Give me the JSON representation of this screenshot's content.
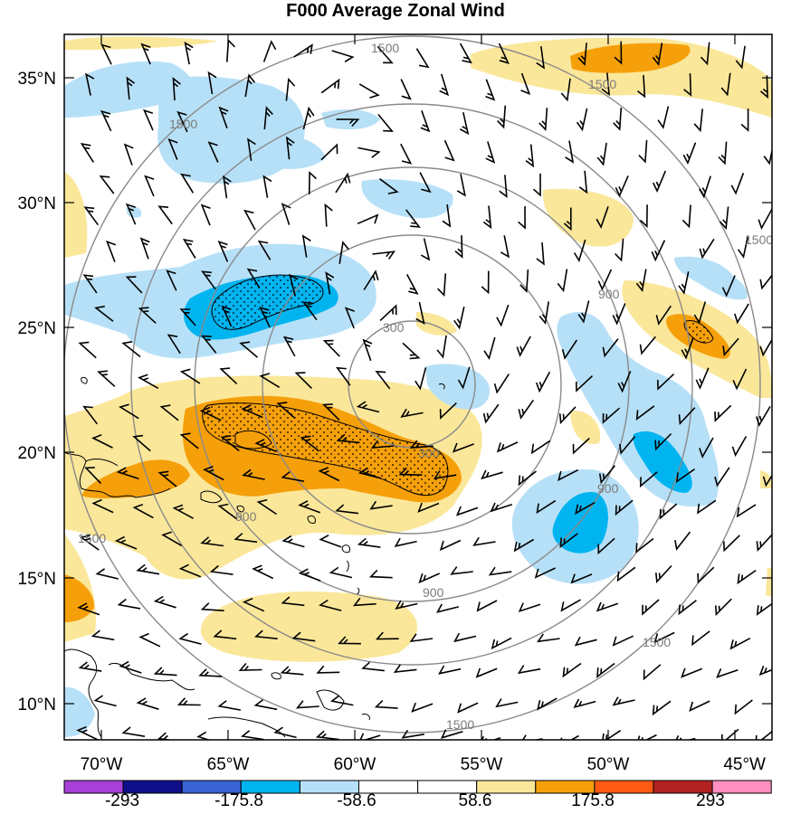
{
  "title": "F000 Average Zonal Wind",
  "map": {
    "lon_ticks": [
      "70°W",
      "65°W",
      "60°W",
      "55°W",
      "50°W",
      "45°W"
    ],
    "lat_ticks": [
      "35°N",
      "30°N",
      "25°N",
      "20°N",
      "15°N",
      "10°N"
    ],
    "range_ring_labels": [
      "300",
      "300",
      "900",
      "900",
      "900",
      "900",
      "1500",
      "1500",
      "1500",
      "1500",
      "1500",
      "1500",
      "1500"
    ]
  },
  "colorbar": {
    "colors": [
      "#a640d8",
      "#0f0f8c",
      "#3a64d6",
      "#00b4f0",
      "#b6e0f7",
      "#ffffff",
      "#ffffff",
      "#fbe79a",
      "#f5a00a",
      "#ff5a14",
      "#b22222",
      "#ff8fc0"
    ],
    "labels": [
      "-293",
      "-175.8",
      "-58.6",
      "58.6",
      "175.8",
      "293"
    ]
  },
  "palette": {
    "light_blue": "#b6e0f7",
    "blue": "#00b4f0",
    "light_yellow": "#fbe79a",
    "orange": "#f5a00a",
    "dark_orange": "#ff5a14",
    "ring_gray": "#8a8a8a"
  }
}
